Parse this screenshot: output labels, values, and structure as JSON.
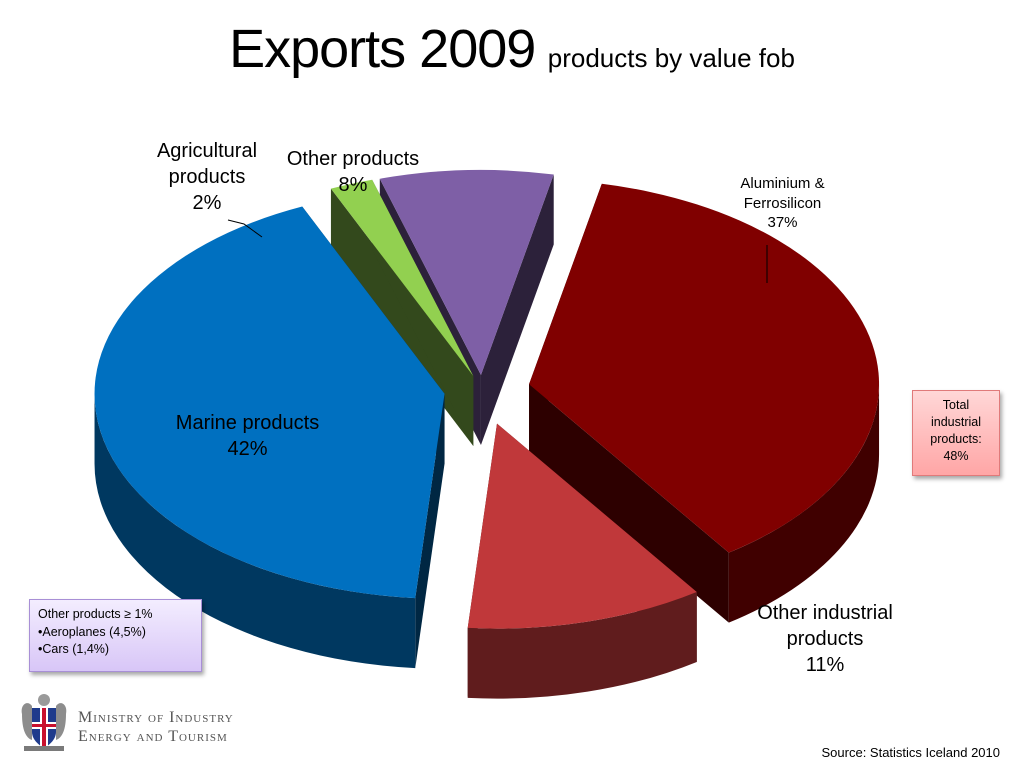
{
  "title": {
    "main": "Exports 2009",
    "sub": "products by value fob"
  },
  "chart_data": {
    "type": "pie",
    "title": "Exports 2009",
    "subtitle": "products by value fob",
    "unit": "%",
    "slices": [
      {
        "name": "Aluminium & Ferrosilicon",
        "label_lines": [
          "Aluminium &",
          "Ferrosilicon"
        ],
        "value": 37,
        "value_label": "37%",
        "color": "#800000"
      },
      {
        "name": "Other industrial products",
        "label_lines": [
          "Other industrial",
          "products"
        ],
        "value": 11,
        "value_label": "11%",
        "color": "#c0383a"
      },
      {
        "name": "Marine products",
        "label_lines": [
          "Marine products"
        ],
        "value": 42,
        "value_label": "42%",
        "color": "#0070c0"
      },
      {
        "name": "Agricultural products",
        "label_lines": [
          "Agricultural",
          "products"
        ],
        "value": 2,
        "value_label": "2%",
        "color": "#92d050"
      },
      {
        "name": "Other products",
        "label_lines": [
          "Other products"
        ],
        "value": 8,
        "value_label": "8%",
        "color": "#7e5fa6"
      }
    ]
  },
  "total_box": {
    "lines": [
      "Total",
      "industrial",
      "products:",
      "48%"
    ]
  },
  "note_box": {
    "lines": [
      "Other products ≥ 1%",
      "•Aeroplanes (4,5%)",
      "•Cars (1,4%)"
    ]
  },
  "ministry": {
    "line1": "Ministry of Industry",
    "line2": "Energy and Tourism"
  },
  "source": "Source: Statistics Iceland 2010"
}
